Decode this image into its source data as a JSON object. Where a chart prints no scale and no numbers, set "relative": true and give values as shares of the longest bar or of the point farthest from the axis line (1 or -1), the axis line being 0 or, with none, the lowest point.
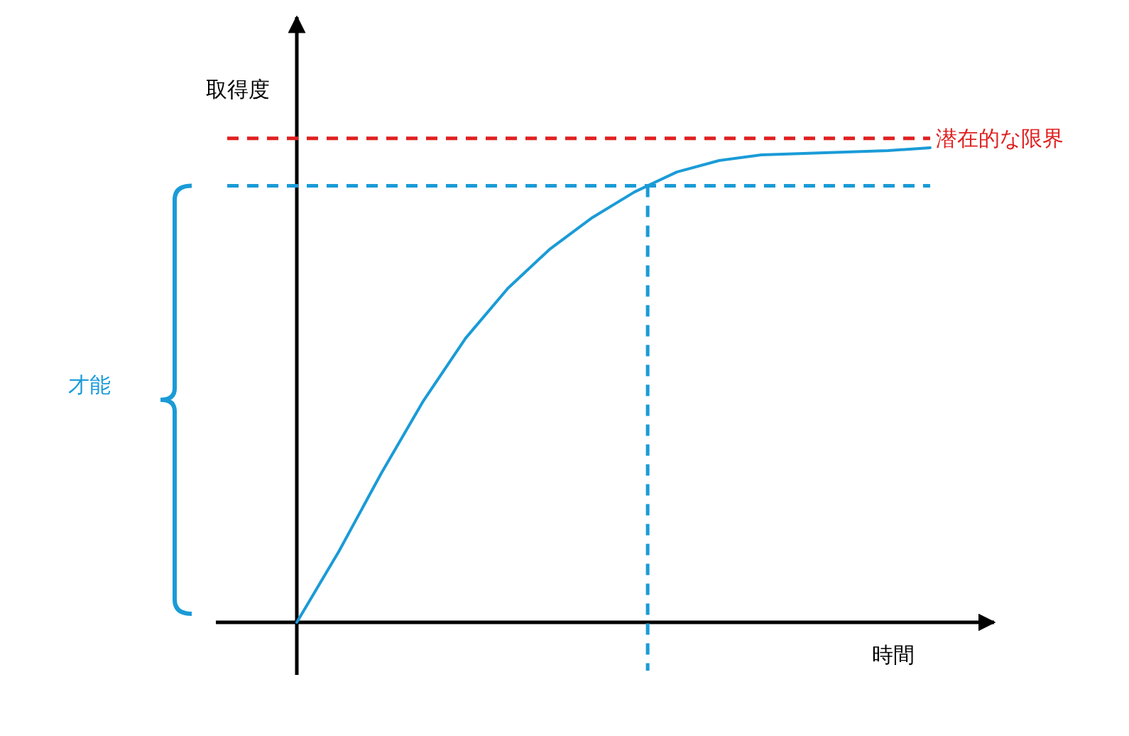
{
  "chart_data": {
    "type": "line",
    "relative": true,
    "xlabel": "時間",
    "ylabel": "取得度",
    "categories": [
      null,
      null,
      null,
      null,
      null,
      null,
      null,
      null,
      null,
      null,
      null,
      null,
      null,
      null,
      null,
      null
    ],
    "series": [
      {
        "color": "#1a9bd7",
        "values": [
          0,
          0.15,
          0.314,
          0.467,
          0.599,
          0.704,
          0.787,
          0.853,
          0.907,
          0.949,
          0.973,
          0.985,
          0.988,
          0.991,
          0.994,
          1
        ]
      }
    ],
    "ref_lines": [
      {
        "axis": "y",
        "value": 1.02,
        "label": "潜在的な限界",
        "color": "#e02020",
        "line_style": "dashed"
      },
      {
        "axis": "y",
        "value": 0.92,
        "color": "#1a9bd7",
        "line_style": "dashed"
      }
    ],
    "annotations": [
      "才能"
    ]
  }
}
